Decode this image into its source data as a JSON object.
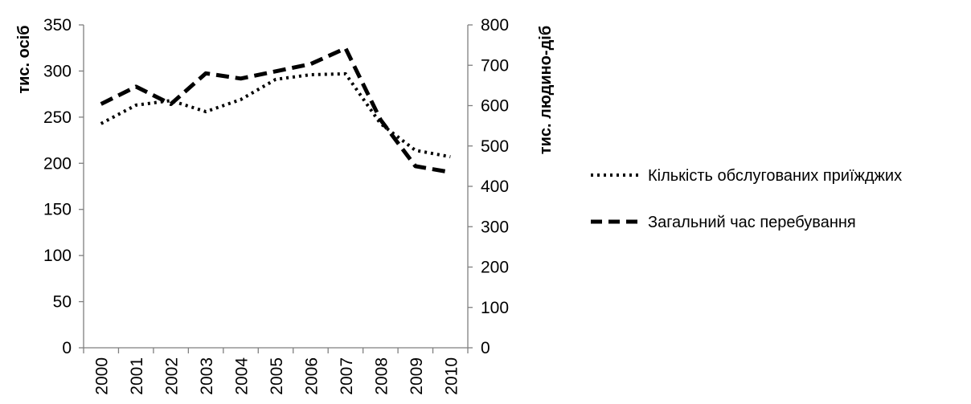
{
  "chart_data": {
    "type": "line",
    "categories": [
      "2000",
      "2001",
      "2002",
      "2003",
      "2004",
      "2005",
      "2006",
      "2007",
      "2008",
      "2009",
      "2010"
    ],
    "y_left": {
      "label": "тис. осіб",
      "range": [
        0,
        350
      ],
      "ticks": [
        0,
        50,
        100,
        150,
        200,
        250,
        300,
        350
      ]
    },
    "y_right": {
      "label": "тис. людино-діб",
      "range": [
        0,
        800
      ],
      "ticks": [
        0,
        100,
        200,
        300,
        400,
        500,
        600,
        700,
        800
      ]
    },
    "series": [
      {
        "name": "Кількість обслугованих приїжджих",
        "axis": "left",
        "line_style": "dotted",
        "color": "#000000",
        "values": [
          243,
          263,
          268,
          256,
          269,
          291,
          296,
          297,
          243,
          214,
          207
        ]
      },
      {
        "name": "Загальний час перебування",
        "axis": "right",
        "line_style": "dashed",
        "color": "#000000",
        "values": [
          604,
          647,
          604,
          680,
          667,
          685,
          703,
          742,
          565,
          450,
          435
        ]
      }
    ],
    "grid": false,
    "legend_position": "right"
  }
}
